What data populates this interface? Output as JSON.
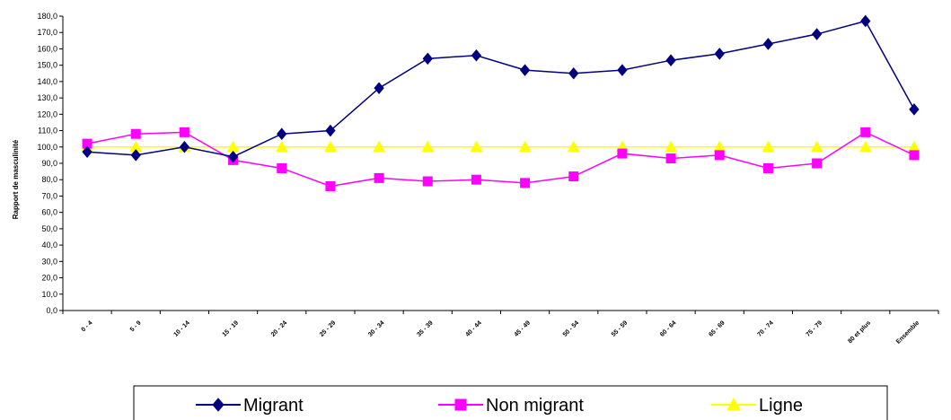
{
  "chart_data": {
    "type": "line",
    "title": "",
    "xlabel": "",
    "ylabel": "Rapport de masculinité",
    "ylim": [
      0,
      180
    ],
    "yticks": [
      "0,0",
      "10,0",
      "20,0",
      "30,0",
      "40,0",
      "50,0",
      "60,0",
      "70,0",
      "80,0",
      "90,0",
      "100,0",
      "110,0",
      "120,0",
      "130,0",
      "140,0",
      "150,0",
      "160,0",
      "170,0",
      "180,0"
    ],
    "categories": [
      "0 - 4",
      "5 - 9",
      "10 - 14",
      "15 - 19",
      "20 - 24",
      "25 - 29",
      "30 - 34",
      "35 - 39",
      "40 - 44",
      "45 - 49",
      "50 - 54",
      "55 - 59",
      "60 - 64",
      "65 - 69",
      "70 - 74",
      "75 - 79",
      "80 et plus",
      "Ensemble"
    ],
    "grid": false,
    "legend_position": "bottom",
    "series": [
      {
        "name": "Migrant",
        "color": "#000080",
        "marker": "diamond",
        "values": [
          97,
          95,
          100,
          94,
          108,
          110,
          136,
          154,
          156,
          147,
          145,
          147,
          153,
          157,
          163,
          169,
          177,
          123
        ]
      },
      {
        "name": "Non migrant",
        "color": "#FF00FF",
        "marker": "square",
        "values": [
          102,
          108,
          109,
          92,
          87,
          76,
          81,
          79,
          80,
          78,
          82,
          96,
          93,
          95,
          87,
          90,
          109,
          95
        ]
      },
      {
        "name": "Ligne",
        "color": "#FFFF00",
        "marker": "triangle",
        "values": [
          100,
          100,
          100,
          100,
          100,
          100,
          100,
          100,
          100,
          100,
          100,
          100,
          100,
          100,
          100,
          100,
          100,
          100
        ]
      }
    ]
  }
}
